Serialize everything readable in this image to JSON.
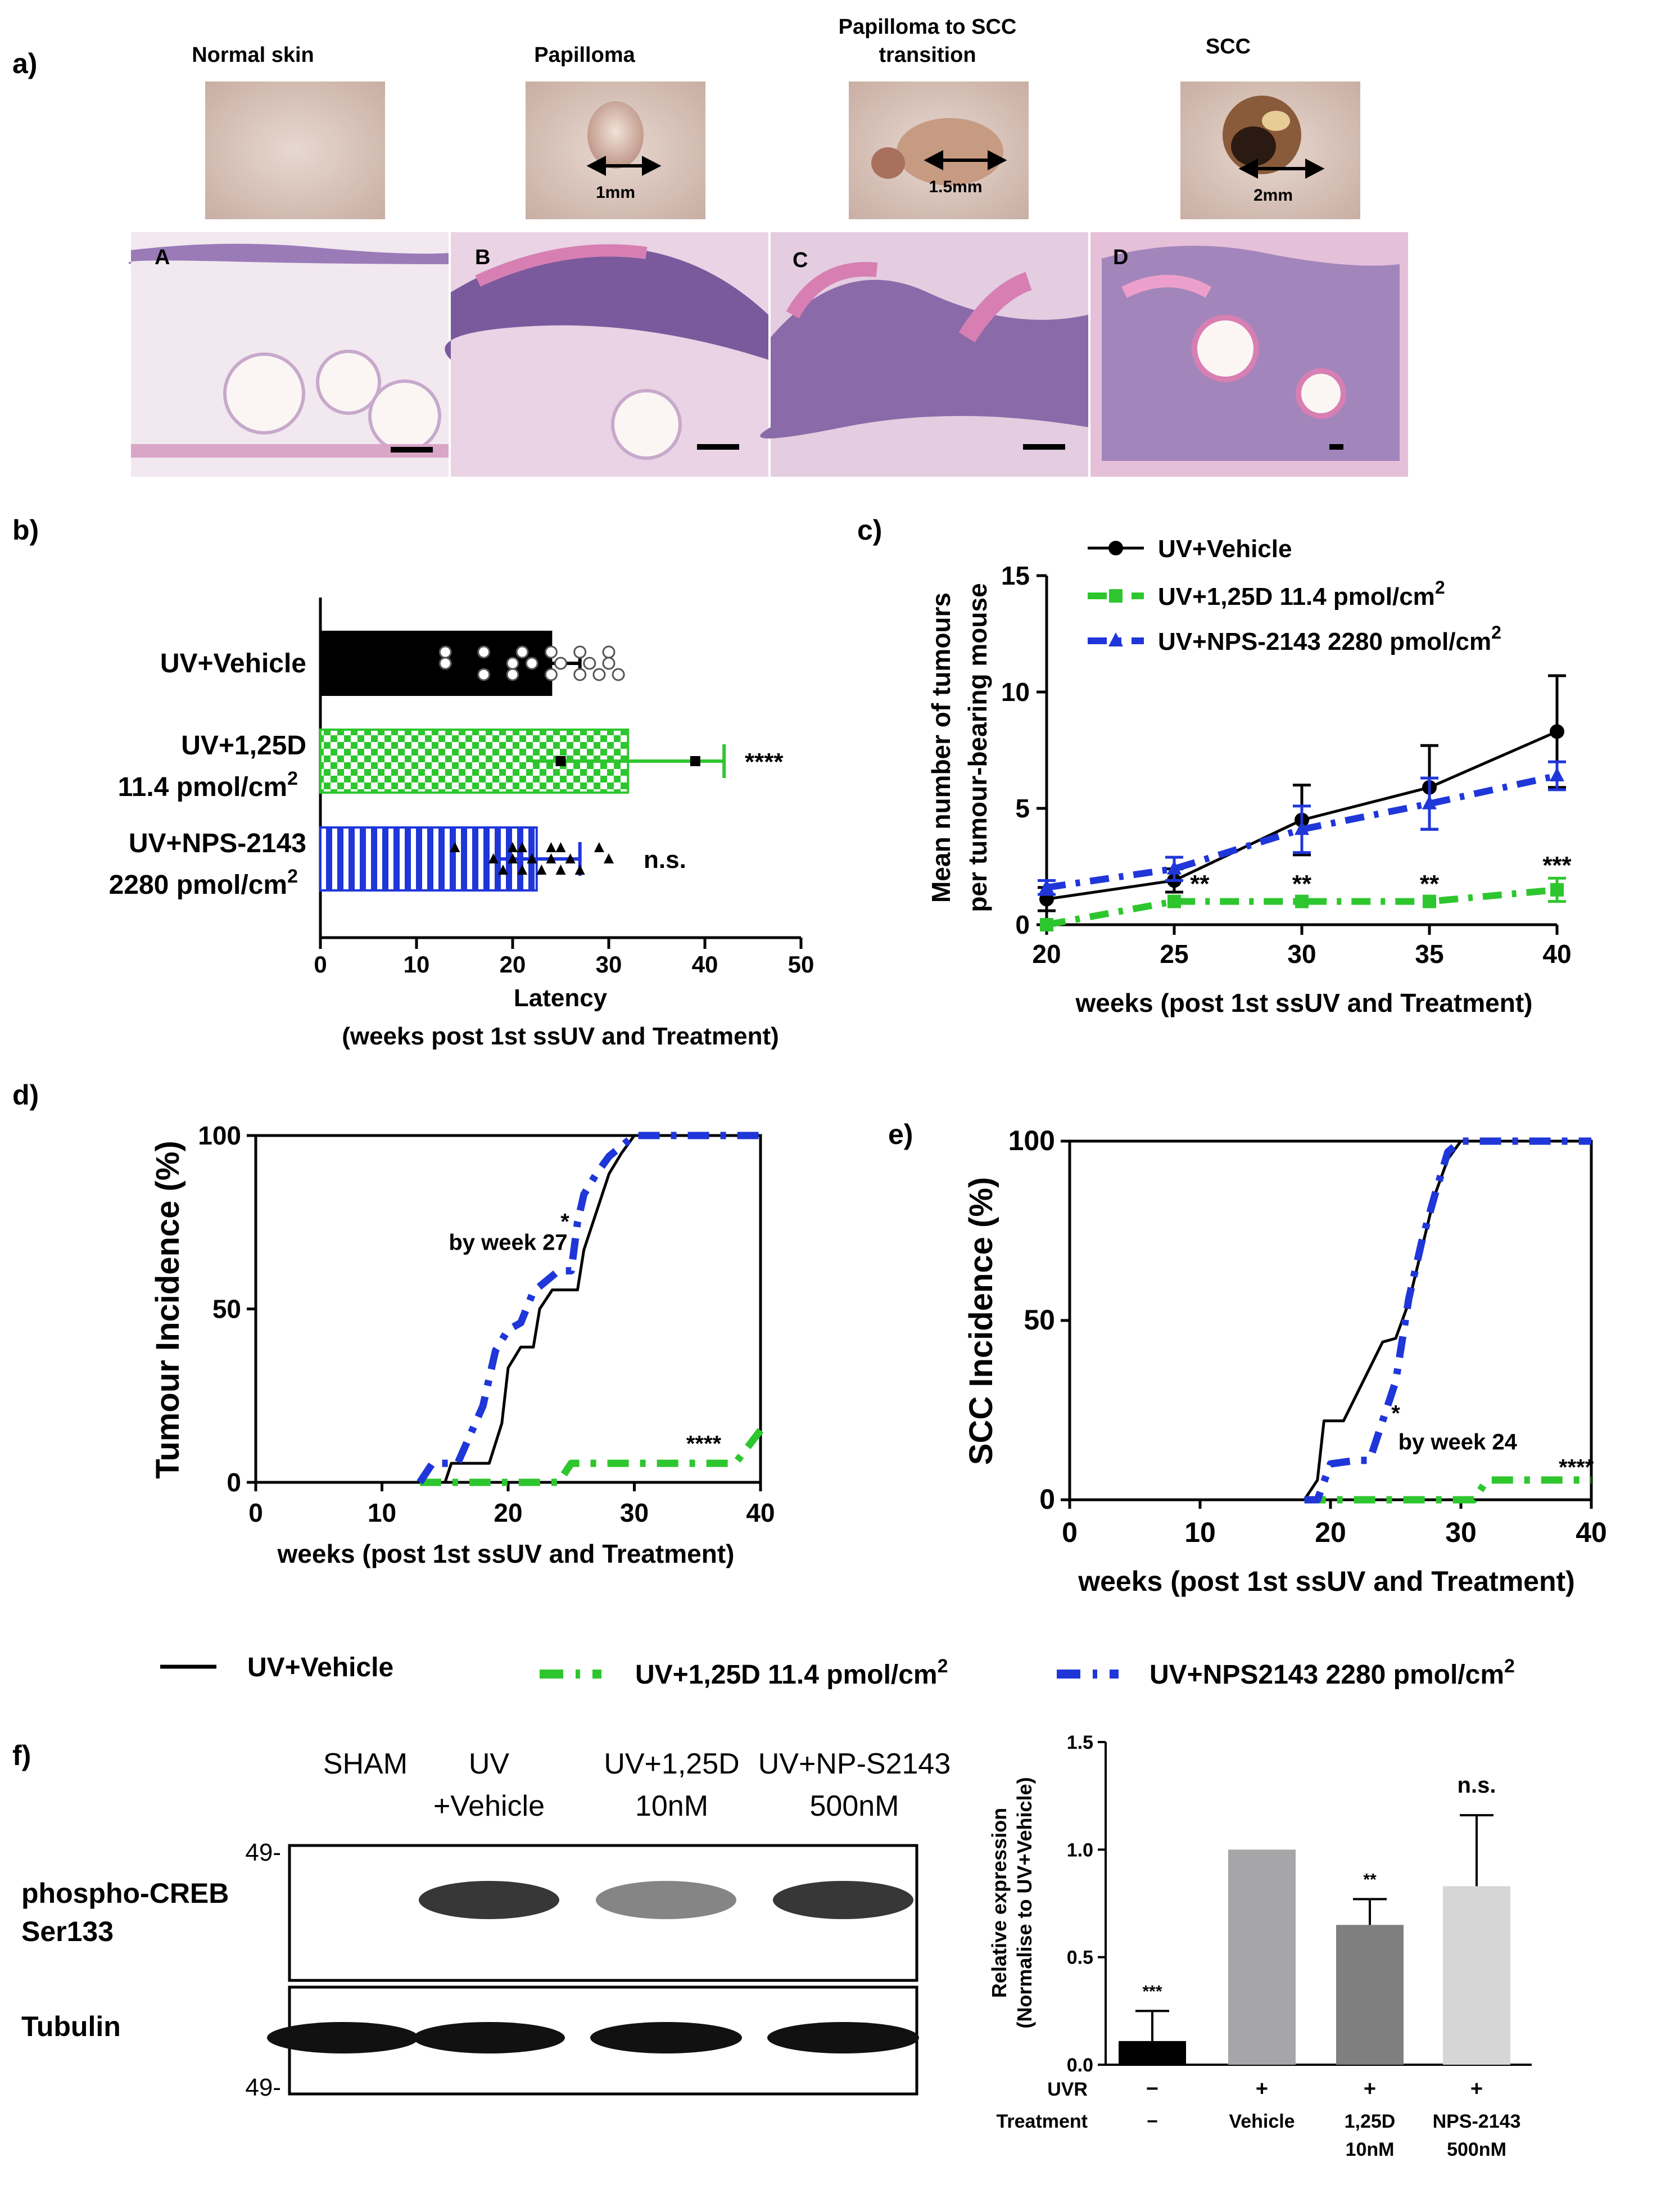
{
  "panels": {
    "a": {
      "label": "a)",
      "stages": [
        "Normal skin",
        "Papilloma",
        "Papilloma to SCC",
        "transition",
        "SCC"
      ],
      "sizes": [
        "1mm",
        "1.5mm",
        "2mm"
      ],
      "histo_letters": [
        "A",
        "B",
        "C",
        "D"
      ],
      "colors": {
        "skin": "#d9c3b8",
        "he_pink": "#e6b8d3",
        "he_purple": "#8e6ba8",
        "he_bg": "#efe3ec"
      }
    },
    "b": {
      "label": "b)"
    },
    "c": {
      "label": "c)"
    },
    "d": {
      "label": "d)"
    },
    "e": {
      "label": "e)"
    },
    "f": {
      "label": "f)"
    }
  },
  "legend": {
    "vehicle": "UV+Vehicle",
    "calcitriol": "UV+1,25D 11.4 pmol/cm",
    "nps": "UV+NPS2143 2280 pmol/cm",
    "sup": "2"
  },
  "colors": {
    "vehicle": "#000000",
    "calcitriol": "#2ec62e",
    "nps": "#1f36d9"
  },
  "chart_data": [
    {
      "panel": "b",
      "type": "bar",
      "orientation": "horizontal",
      "categories": [
        "UV+Vehicle",
        "UV+1,25D 11.4 pmol/cm2",
        "UV+NPS-2143 2280 pmol/cm2"
      ],
      "category_lines": [
        [
          "UV+Vehicle"
        ],
        [
          "UV+1,25D",
          "11.4 pmol/cm",
          "2"
        ],
        [
          "UV+NPS-2143",
          "2280 pmol/cm",
          "2"
        ]
      ],
      "values": [
        24,
        32,
        22.5
      ],
      "errors": [
        3,
        10,
        4.5
      ],
      "significance": [
        "",
        "****",
        "n.s."
      ],
      "xlabel": "Latency",
      "xlabel2": "(weeks post 1st ssUV and Treatment)",
      "xlim": [
        0,
        50
      ],
      "xticks": [
        0,
        10,
        20,
        30,
        40,
        50
      ],
      "points": [
        [
          13,
          13,
          17,
          17,
          20,
          20,
          21,
          22,
          24,
          24,
          25,
          27,
          27,
          28,
          29,
          30,
          30,
          31
        ],
        [
          25,
          39
        ],
        [
          14,
          18,
          19,
          20,
          20,
          21,
          21,
          22,
          23,
          24,
          24,
          25,
          25,
          26,
          27,
          29,
          30
        ]
      ]
    },
    {
      "panel": "c",
      "type": "line",
      "x": [
        20,
        25,
        30,
        35,
        40
      ],
      "series": [
        {
          "name": "UV+Vehicle",
          "values": [
            1.1,
            1.9,
            4.5,
            5.9,
            8.3
          ],
          "errors": [
            0.5,
            0.5,
            1.5,
            1.8,
            2.4
          ]
        },
        {
          "name": "UV+1,25D 11.4 pmol/cm2",
          "values": [
            0,
            1,
            1,
            1,
            1.5
          ],
          "errors": [
            0,
            0,
            0,
            0,
            0.5
          ]
        },
        {
          "name": "UV+NPS-2143 2280 pmol/cm2",
          "values": [
            1.6,
            2.4,
            4.1,
            5.2,
            6.4
          ],
          "errors": [
            0.3,
            0.5,
            1.0,
            1.1,
            0.6
          ]
        }
      ],
      "legend_lines": [
        "UV+Vehicle",
        "UV+1,25D 11.4 pmol/cm",
        "UV+NPS-2143 2280 pmol/cm"
      ],
      "significance": [
        {
          "x": 20,
          "y": 0.5,
          "text": "*"
        },
        {
          "x": 26,
          "y": 1.4,
          "text": "**"
        },
        {
          "x": 30,
          "y": 1.4,
          "text": "**"
        },
        {
          "x": 35,
          "y": 1.4,
          "text": "**"
        },
        {
          "x": 40,
          "y": 2.2,
          "text": "***"
        }
      ],
      "xlabel": "weeks (post 1st ssUV and Treatment)",
      "ylabel": "Mean number of tumours",
      "ylabel2": "per tumour-bearing mouse",
      "xlim": [
        20,
        40
      ],
      "ylim": [
        0,
        15
      ],
      "xticks": [
        20,
        25,
        30,
        35,
        40
      ],
      "yticks": [
        0,
        5,
        10,
        15
      ]
    },
    {
      "panel": "d",
      "type": "line",
      "series": [
        {
          "name": "UV+Vehicle",
          "points": [
            [
              14,
              0
            ],
            [
              15,
              0
            ],
            [
              15.5,
              5.5
            ],
            [
              18.5,
              5.5
            ],
            [
              19.5,
              17
            ],
            [
              20,
              33
            ],
            [
              21,
              39
            ],
            [
              22,
              39
            ],
            [
              22.5,
              50
            ],
            [
              23.5,
              55.5
            ],
            [
              25.5,
              55.5
            ],
            [
              26,
              67
            ],
            [
              27,
              78
            ],
            [
              28,
              89
            ],
            [
              29,
              95
            ],
            [
              30,
              100
            ],
            [
              40,
              100
            ]
          ]
        },
        {
          "name": "UV+1,25D 11.4 pmol/cm2",
          "points": [
            [
              13,
              0
            ],
            [
              16,
              0
            ],
            [
              23,
              0
            ],
            [
              24,
              0
            ],
            [
              25,
              5.5
            ],
            [
              30,
              5.5
            ],
            [
              38,
              5.5
            ],
            [
              40,
              15
            ]
          ]
        },
        {
          "name": "UV+NPS-2143 2280 pmol/cm2",
          "points": [
            [
              13,
              0
            ],
            [
              14,
              5.5
            ],
            [
              16,
              5.5
            ],
            [
              18,
              22
            ],
            [
              19,
              38
            ],
            [
              20,
              44
            ],
            [
              21,
              46
            ],
            [
              22,
              55
            ],
            [
              24,
              61
            ],
            [
              25,
              61
            ],
            [
              25.5,
              75
            ],
            [
              26,
              83
            ],
            [
              27,
              89
            ],
            [
              28,
              94
            ],
            [
              29,
              97
            ],
            [
              30,
              100
            ],
            [
              40,
              100
            ]
          ]
        }
      ],
      "annotations": [
        {
          "x": 24.5,
          "y": 73,
          "text": "*"
        },
        {
          "x": 20,
          "y": 67,
          "text": "by week 27"
        },
        {
          "x": 35.5,
          "y": 9,
          "text": "****"
        }
      ],
      "xlabel": "weeks (post 1st ssUV and Treatment)",
      "ylabel": "Tumour Incidence (%)",
      "xlim": [
        0,
        40
      ],
      "ylim": [
        0,
        100
      ],
      "xticks": [
        0,
        10,
        20,
        30,
        40
      ],
      "yticks": [
        0,
        50,
        100
      ]
    },
    {
      "panel": "e",
      "type": "line",
      "series": [
        {
          "name": "UV+Vehicle",
          "points": [
            [
              18,
              0
            ],
            [
              19,
              5.5
            ],
            [
              19.5,
              22
            ],
            [
              21,
              22
            ],
            [
              22.5,
              33
            ],
            [
              24,
              44
            ],
            [
              25,
              45
            ],
            [
              26,
              55
            ],
            [
              27,
              70
            ],
            [
              28,
              85
            ],
            [
              29,
              95
            ],
            [
              30,
              100
            ],
            [
              40,
              100
            ]
          ]
        },
        {
          "name": "UV+1,25D 11.4 pmol/cm2",
          "points": [
            [
              18,
              0
            ],
            [
              30,
              0
            ],
            [
              31,
              0
            ],
            [
              32,
              5.5
            ],
            [
              40,
              5.5
            ]
          ]
        },
        {
          "name": "UV+NPS-2143 2280 pmol/cm2",
          "points": [
            [
              18,
              0
            ],
            [
              19,
              0
            ],
            [
              20,
              10
            ],
            [
              22,
              11
            ],
            [
              23,
              11
            ],
            [
              24,
              22
            ],
            [
              25,
              33
            ],
            [
              26,
              56
            ],
            [
              27,
              72
            ],
            [
              28,
              85
            ],
            [
              29,
              97
            ],
            [
              30,
              100
            ],
            [
              40,
              100
            ]
          ]
        }
      ],
      "annotations": [
        {
          "x": 25,
          "y": 22,
          "text": "*"
        },
        {
          "x": 25.2,
          "y": 14,
          "text": "by week 24"
        },
        {
          "x": 37.5,
          "y": 7,
          "text": "****"
        }
      ],
      "xlabel": "weeks (post 1st ssUV and Treatment)",
      "ylabel": "SCC Incidence (%)",
      "xlim": [
        0,
        40
      ],
      "ylim": [
        0,
        100
      ],
      "xticks": [
        0,
        10,
        20,
        30,
        40
      ],
      "yticks": [
        0,
        50,
        100
      ]
    },
    {
      "panel": "f",
      "type": "bar",
      "categories": [
        "-",
        "Vehicle",
        "1,25D 10nM",
        "NPS-2143 500nM"
      ],
      "uvr": [
        "−",
        "+",
        "+",
        "+"
      ],
      "treatment_lines": [
        [
          "−"
        ],
        [
          "Vehicle"
        ],
        [
          "1,25D",
          "10nM"
        ],
        [
          "NPS-2143",
          "500nM"
        ]
      ],
      "row_labels": [
        "UVR",
        "Treatment"
      ],
      "values": [
        0.11,
        1.0,
        0.65,
        0.83
      ],
      "errors": [
        0.14,
        0,
        0.12,
        0.33
      ],
      "bar_colors": [
        "#000000",
        "#a6a6a8",
        "#7f7f7f",
        "#d6d6d6"
      ],
      "significance": [
        "***",
        "",
        "**",
        "n.s."
      ],
      "ylabel": "Relative expression",
      "ylabel2": "(Normalise to UV+Vehicle)",
      "ylim": [
        0,
        1.5
      ],
      "yticks": [
        "0.0",
        "0.5",
        "1.0",
        "1.5"
      ]
    }
  ],
  "western_blot": {
    "lanes": [
      [
        "SHAM"
      ],
      [
        "UV",
        "+Vehicle"
      ],
      [
        "UV+1,25D",
        "10nM"
      ],
      [
        "UV+NP-S2143",
        "500nM"
      ]
    ],
    "rows": [
      [
        "phospho-CREB",
        "Ser133"
      ],
      [
        "Tubulin"
      ]
    ],
    "markers": [
      "49-",
      "49-"
    ],
    "intensity": [
      [
        0,
        0.9,
        0.55,
        0.9
      ],
      [
        1,
        1,
        1,
        1
      ]
    ]
  }
}
